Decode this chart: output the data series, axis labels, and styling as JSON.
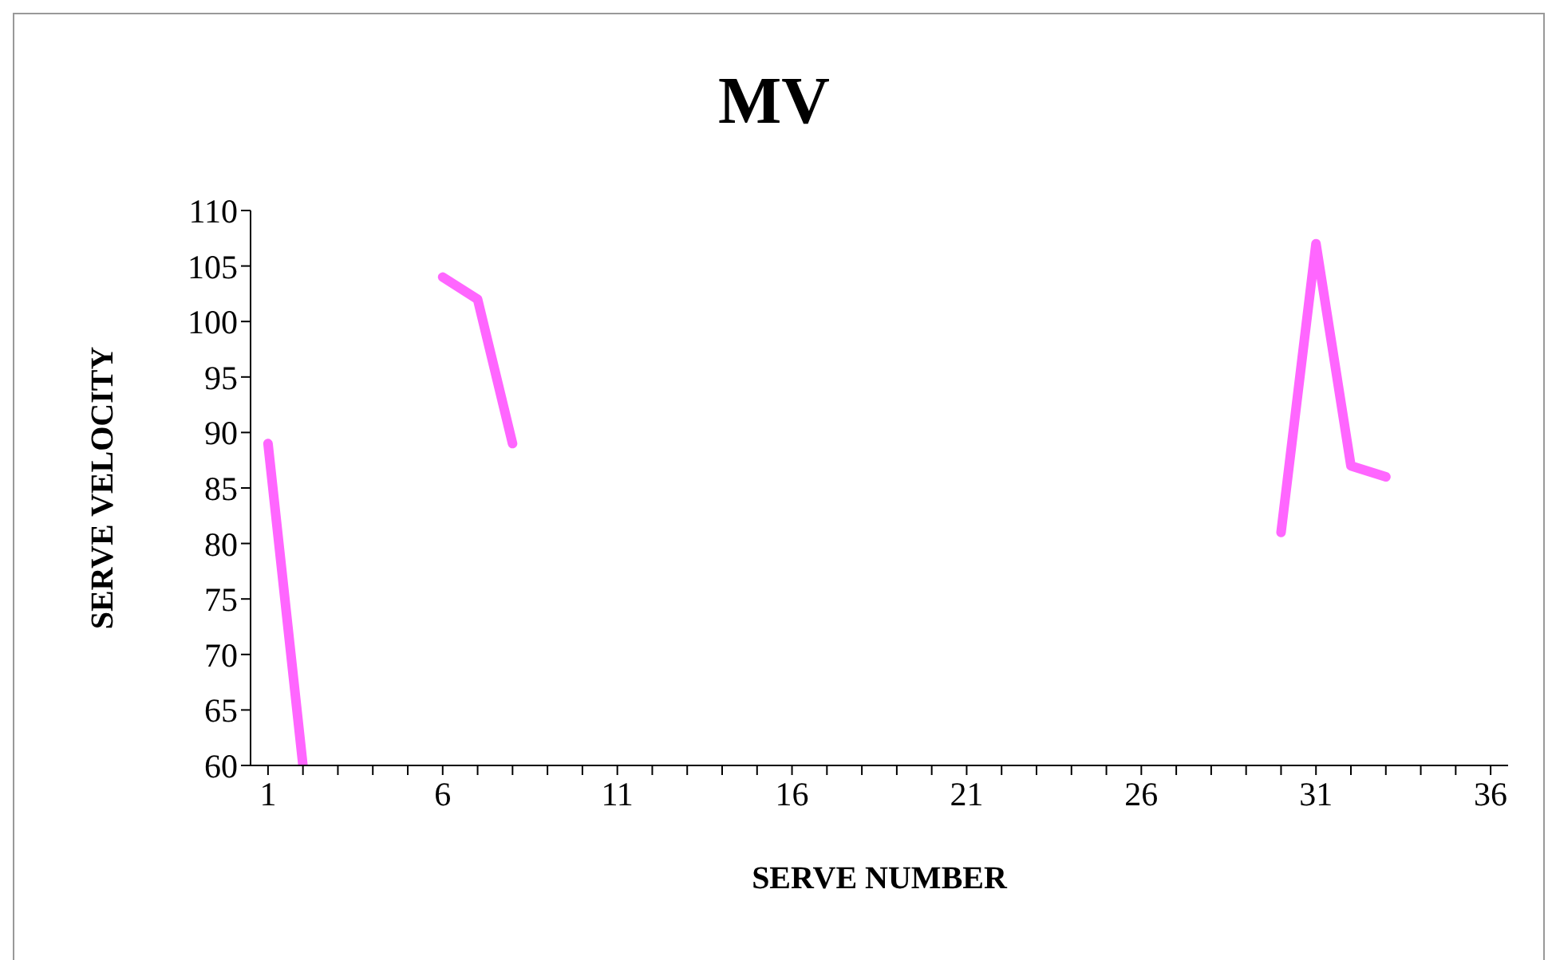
{
  "chart_data": {
    "type": "line",
    "title": "MV",
    "xlabel": "SERVE NUMBER",
    "ylabel": "SERVE VELOCITY",
    "x": [
      1,
      2,
      3,
      4,
      5,
      6,
      7,
      8,
      9,
      10,
      11,
      12,
      13,
      14,
      15,
      16,
      17,
      18,
      19,
      20,
      21,
      22,
      23,
      24,
      25,
      26,
      27,
      28,
      29,
      30,
      31,
      32,
      33
    ],
    "series": [
      {
        "color": "#ff66ff",
        "values": [
          89,
          60,
          null,
          null,
          null,
          104,
          102,
          89,
          null,
          null,
          null,
          null,
          null,
          null,
          null,
          null,
          null,
          null,
          null,
          null,
          null,
          null,
          null,
          null,
          null,
          null,
          null,
          null,
          null,
          81,
          107,
          87,
          86
        ]
      }
    ],
    "xlim": [
      0.5,
      36.5
    ],
    "xticks": [
      1,
      {
        "value": 2,
        "label": null
      },
      {
        "value": 3,
        "label": null
      },
      {
        "value": 4,
        "label": null
      },
      {
        "value": 5,
        "label": null
      },
      6,
      {
        "value": 7,
        "label": null
      },
      {
        "value": 8,
        "label": null
      },
      {
        "value": 9,
        "label": null
      },
      {
        "value": 10,
        "label": null
      },
      11,
      {
        "value": 12,
        "label": null
      },
      {
        "value": 13,
        "label": null
      },
      {
        "value": 14,
        "label": null
      },
      {
        "value": 15,
        "label": null
      },
      16,
      {
        "value": 17,
        "label": null
      },
      {
        "value": 18,
        "label": null
      },
      {
        "value": 19,
        "label": null
      },
      {
        "value": 20,
        "label": null
      },
      21,
      {
        "value": 22,
        "label": null
      },
      {
        "value": 23,
        "label": null
      },
      {
        "value": 24,
        "label": null
      },
      {
        "value": 25,
        "label": null
      },
      26,
      {
        "value": 27,
        "label": null
      },
      {
        "value": 28,
        "label": null
      },
      {
        "value": 29,
        "label": null
      },
      {
        "value": 30,
        "label": null
      },
      31,
      {
        "value": 32,
        "label": null
      },
      {
        "value": 33,
        "label": null
      },
      {
        "value": 34,
        "label": null
      },
      {
        "value": 35,
        "label": null
      },
      36
    ],
    "ylim": [
      60,
      110
    ],
    "yticks": [
      60,
      65,
      70,
      75,
      80,
      85,
      90,
      95,
      100,
      105,
      110
    ],
    "grid": false,
    "legend": false,
    "marker": "none",
    "line_style": "solid"
  }
}
